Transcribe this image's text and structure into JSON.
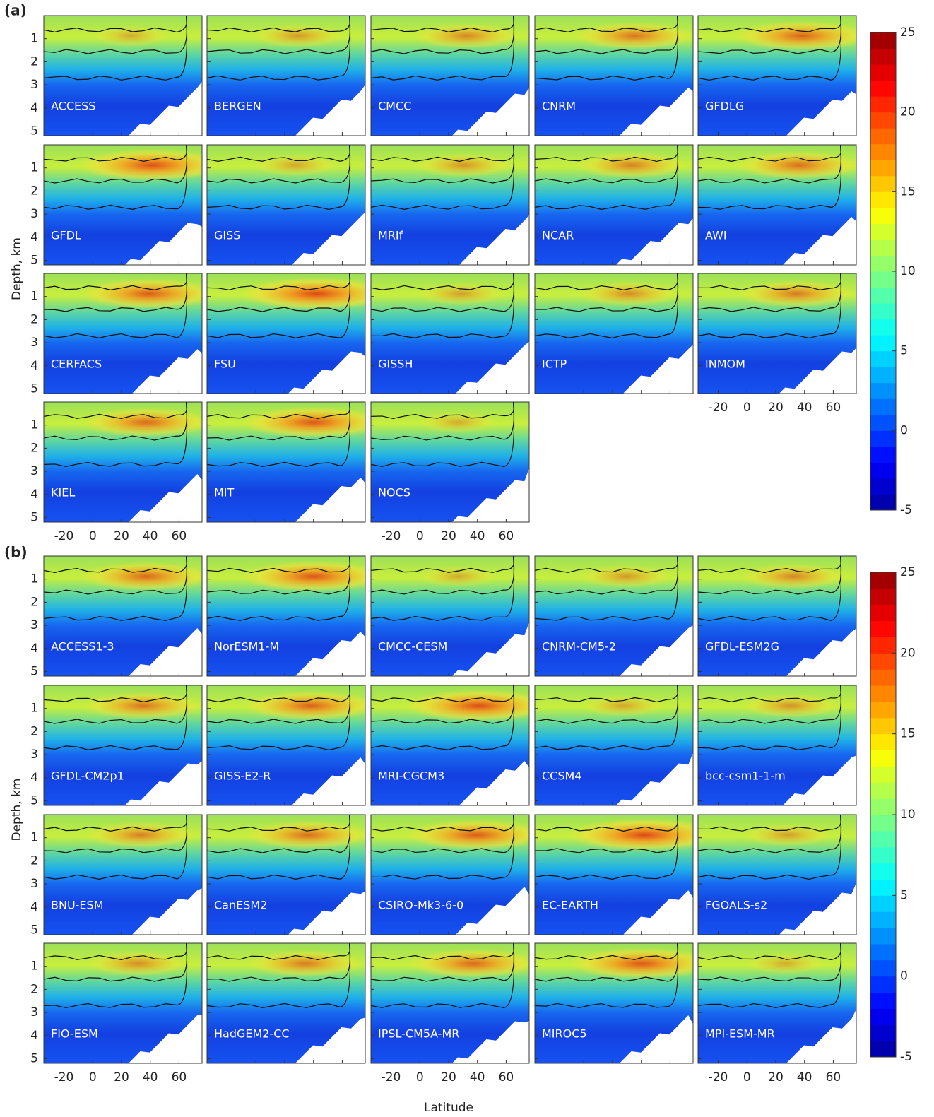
{
  "chart_data": [
    {
      "type": "contour",
      "label": "(a)",
      "ylabel": "Depth, km",
      "panels": [
        "ACCESS",
        "BERGEN",
        "CMCC",
        "CNRM",
        "GFDLG",
        "GFDL",
        "GISS",
        "MRIf",
        "NCAR",
        "AWI",
        "CERFACS",
        "FSU",
        "GISSH",
        "ICTP",
        "INMOM",
        "KIEL",
        "MIT",
        "NOCS"
      ],
      "xlim": [
        -34,
        76
      ],
      "xticks": [
        -20,
        0,
        20,
        40,
        60
      ],
      "ylim": [
        0,
        5.2
      ],
      "yticks": [
        1,
        2,
        3,
        4,
        5
      ],
      "clim": [
        -5,
        25
      ],
      "cticks": [
        -5,
        0,
        5,
        10,
        15,
        20,
        25
      ]
    },
    {
      "type": "contour",
      "label": "(b)",
      "ylabel": "Depth, km",
      "xlabel": "Latitude",
      "panels": [
        "ACCESS1-3",
        "NorESM1-M",
        "CMCC-CESM",
        "CNRM-CM5-2",
        "GFDL-ESM2G",
        "GFDL-CM2p1",
        "GISS-E2-R",
        "MRI-CGCM3",
        "CCSM4",
        "bcc-csm1-1-m",
        "BNU-ESM",
        "CanESM2",
        "CSIRO-Mk3-6-0",
        "EC-EARTH",
        "FGOALS-s2",
        "FIO-ESM",
        "HadGEM2-CC",
        "IPSL-CM5A-MR",
        "MIROC5",
        "MPI-ESM-MR"
      ],
      "xlim": [
        -34,
        76
      ],
      "xticks": [
        -20,
        0,
        20,
        40,
        60
      ],
      "ylim": [
        0,
        5.2
      ],
      "yticks": [
        1,
        2,
        3,
        4,
        5
      ],
      "clim": [
        -5,
        25
      ],
      "cticks": [
        -5,
        0,
        5,
        10,
        15,
        20,
        25
      ]
    }
  ]
}
